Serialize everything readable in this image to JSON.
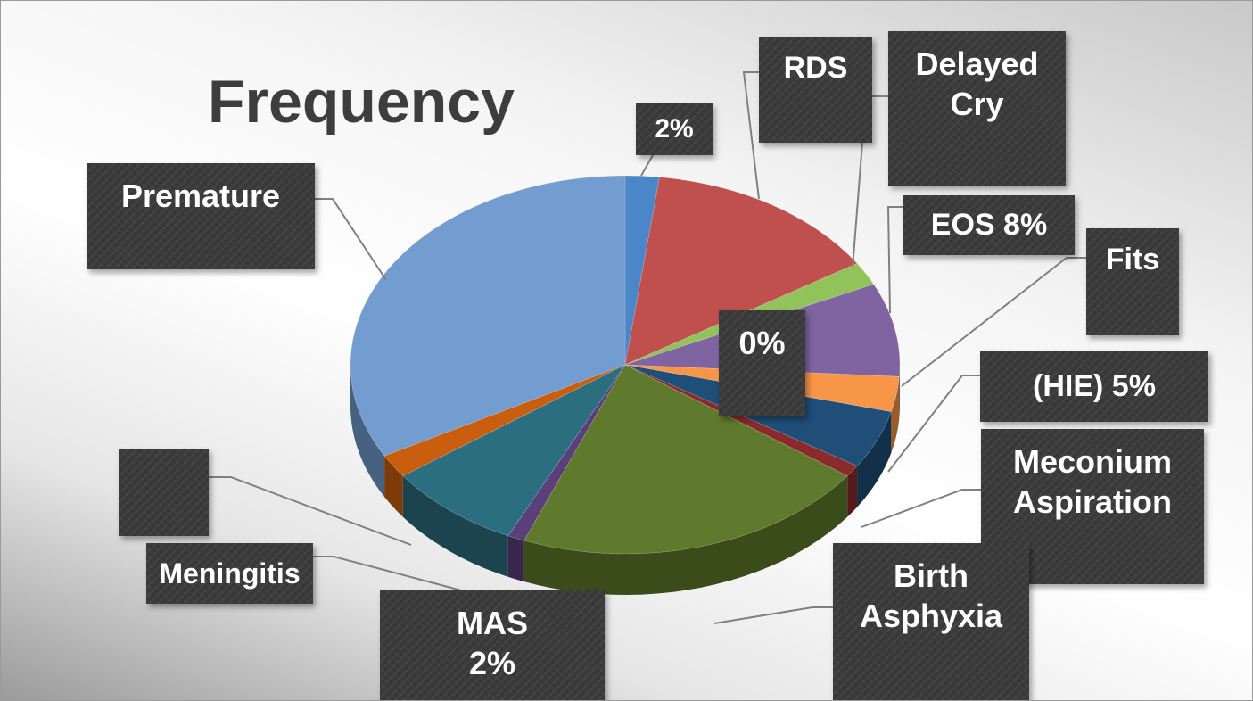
{
  "chart_data": {
    "type": "pie",
    "title": "Frequency",
    "style": "3d",
    "slices": [
      {
        "label": "",
        "value": 2,
        "value_label": "2%",
        "color": "#4a86c8"
      },
      {
        "label": "RDS",
        "value": 14,
        "value_label": "",
        "color": "#c0504d"
      },
      {
        "label": "Delayed Cry",
        "value": 2,
        "value_label": "",
        "color": "#92c35a"
      },
      {
        "label": "EOS",
        "value": 8,
        "value_label": "8%",
        "color": "#8064a2"
      },
      {
        "label": "Fits",
        "value": 3,
        "value_label": "",
        "color": "#f79646"
      },
      {
        "label": "(HIE)",
        "value": 5,
        "value_label": "5%",
        "color": "#1f4e79"
      },
      {
        "label": "Meconium Aspiration",
        "value": 1,
        "value_label": "",
        "color": "#8b2a2a"
      },
      {
        "label": "",
        "value": 0,
        "value_label": "0%",
        "color": "#5d7f2a"
      },
      {
        "label": "Birth Asphyxia",
        "value": 21,
        "value_label": "",
        "color": "#5f7a2c"
      },
      {
        "label": "",
        "value": 1,
        "value_label": "",
        "color": "#5b3f7a"
      },
      {
        "label": "Meningitis",
        "value": 8,
        "value_label": "",
        "color": "#2b6e80"
      },
      {
        "label": "MAS",
        "value": 2,
        "value_label": "2%",
        "color": "#c95f0e"
      },
      {
        "label": "Premature",
        "value": 33,
        "value_label": "",
        "color": "#739dd0"
      }
    ],
    "callouts": [
      {
        "slice": 0,
        "text": "2%"
      },
      {
        "slice": 1,
        "text": "RDS"
      },
      {
        "slice": 2,
        "text": "Delayed\nCry"
      },
      {
        "slice": 3,
        "text": "EOS 8%"
      },
      {
        "slice": 4,
        "text": "Fits"
      },
      {
        "slice": 5,
        "text": "(HIE) 5%"
      },
      {
        "slice": 6,
        "text": "Meconium\nAspiration"
      },
      {
        "slice": 7,
        "text": "0%"
      },
      {
        "slice": 8,
        "text": "Birth\nAsphyxia"
      },
      {
        "slice": 10,
        "text": "Meningitis"
      },
      {
        "slice": 11,
        "text": "MAS\n2%"
      },
      {
        "slice": 9,
        "text": ""
      },
      {
        "slice": 12,
        "text": "Premature"
      }
    ]
  }
}
